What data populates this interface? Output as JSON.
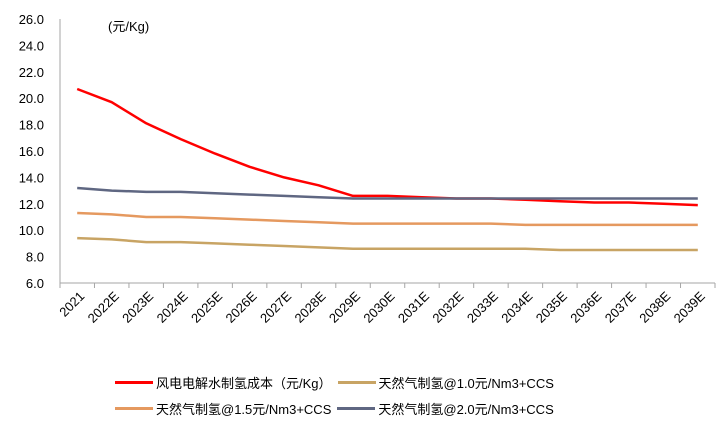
{
  "chart_data": {
    "type": "line",
    "title": "",
    "unit_label": "(元/Kg)",
    "xlabel": "",
    "ylabel": "(元/Kg)",
    "ylim": [
      6,
      26
    ],
    "yticks": [
      "6.0",
      "8.0",
      "10.0",
      "12.0",
      "14.0",
      "16.0",
      "18.0",
      "20.0",
      "22.0",
      "24.0",
      "26.0"
    ],
    "categories": [
      "2021",
      "2022E",
      "2023E",
      "2024E",
      "2025E",
      "2026E",
      "2027E",
      "2028E",
      "2029E",
      "2030E",
      "2031E",
      "2032E",
      "2033E",
      "2034E",
      "2035E",
      "2036E",
      "2037E",
      "2038E",
      "2039E"
    ],
    "grid": false,
    "legend_position": "bottom",
    "series": [
      {
        "name": "风电电解水制氢成本（元/Kg）",
        "color": "#FF0000",
        "values": [
          20.7,
          19.7,
          18.1,
          16.9,
          15.8,
          14.8,
          14.0,
          13.4,
          12.6,
          12.6,
          12.5,
          12.4,
          12.4,
          12.3,
          12.2,
          12.1,
          12.1,
          12.0,
          11.9
        ]
      },
      {
        "name": "天然气制氢@1.0元/Nm3+CCS",
        "color": "#C8A464",
        "values": [
          9.4,
          9.3,
          9.1,
          9.1,
          9.0,
          8.9,
          8.8,
          8.7,
          8.6,
          8.6,
          8.6,
          8.6,
          8.6,
          8.6,
          8.5,
          8.5,
          8.5,
          8.5,
          8.5
        ]
      },
      {
        "name": "天然气制氢@1.5元/Nm3+CCS",
        "color": "#E5995F",
        "values": [
          11.3,
          11.2,
          11.0,
          11.0,
          10.9,
          10.8,
          10.7,
          10.6,
          10.5,
          10.5,
          10.5,
          10.5,
          10.5,
          10.4,
          10.4,
          10.4,
          10.4,
          10.4,
          10.4
        ]
      },
      {
        "name": "天然气制氢@2.0元/Nm3+CCS",
        "color": "#5F6782",
        "values": [
          13.2,
          13.0,
          12.9,
          12.9,
          12.8,
          12.7,
          12.6,
          12.5,
          12.4,
          12.4,
          12.4,
          12.4,
          12.4,
          12.4,
          12.4,
          12.4,
          12.4,
          12.4,
          12.4
        ]
      }
    ]
  }
}
